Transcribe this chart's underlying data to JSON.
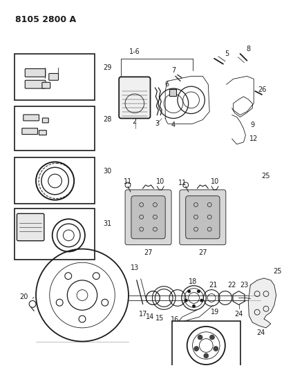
{
  "title": "8105 2800 A",
  "bg_color": "#ffffff",
  "line_color": "#1a1a1a",
  "gray": "#888888",
  "lightgray": "#cccccc",
  "title_fontsize": 9,
  "label_fontsize": 7,
  "fig_width": 4.11,
  "fig_height": 5.33,
  "dpi": 100
}
